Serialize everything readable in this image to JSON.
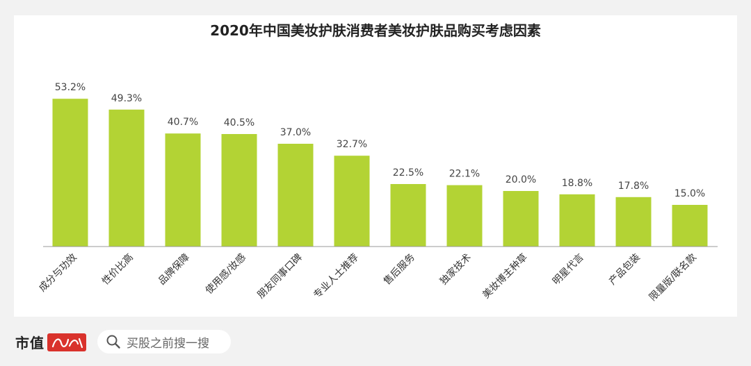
{
  "chart_data": {
    "type": "bar",
    "title": "2020年中国美妆护肤消费者美妆护肤品购买考虑因素",
    "categories": [
      "成分与功效",
      "性价比高",
      "品牌保障",
      "使用感/妆感",
      "朋友同事口碑",
      "专业人士推荐",
      "售后服务",
      "独家技术",
      "美妆博主种草",
      "明星代言",
      "产品包装",
      "限量版/联名款"
    ],
    "values": [
      53.2,
      49.3,
      40.7,
      40.5,
      37.0,
      32.7,
      22.5,
      22.1,
      20.0,
      18.8,
      17.8,
      15.0
    ],
    "value_labels": [
      "53.2%",
      "49.3%",
      "40.7%",
      "40.5%",
      "37.0%",
      "32.7%",
      "22.5%",
      "22.1%",
      "20.0%",
      "18.8%",
      "17.8%",
      "15.0%"
    ],
    "unit": "%",
    "ylim": [
      0,
      60
    ],
    "grid": false,
    "legend": "none",
    "bar_color": "#b3d334",
    "axis_color": "#999999"
  },
  "footer": {
    "brand": "市值",
    "search_placeholder": "买股之前搜一搜",
    "seal_color": "#d9322c",
    "search_icon": "search-icon"
  }
}
